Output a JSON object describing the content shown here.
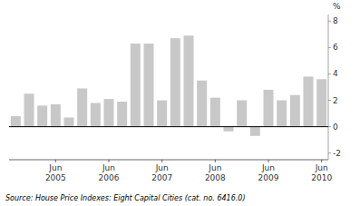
{
  "chart_data": {
    "type": "bar",
    "ylabel": "%",
    "source": "Source: House Price Indexes: Eight Capital Cities (cat. no. 6416.0)",
    "categories": [
      null,
      null,
      null,
      "Jun\n2005",
      null,
      null,
      null,
      "Jun\n2006",
      null,
      null,
      null,
      "Jun\n2007",
      null,
      null,
      null,
      "Jun\n2008",
      null,
      null,
      null,
      "Jun\n2009",
      null,
      null,
      null,
      "Jun\n2010"
    ],
    "values": [
      0.8,
      2.5,
      1.6,
      1.7,
      0.7,
      2.9,
      1.8,
      2.1,
      1.9,
      6.3,
      6.3,
      2.0,
      6.7,
      6.9,
      3.5,
      2.2,
      -0.35,
      2.0,
      -0.7,
      2.8,
      2.0,
      2.4,
      3.8,
      3.6
    ],
    "color": "#c8c8c8",
    "ylim": [
      -2.5,
      8.5
    ],
    "yticks": [
      -2,
      0,
      2,
      4,
      6,
      8
    ],
    "grid": false
  }
}
